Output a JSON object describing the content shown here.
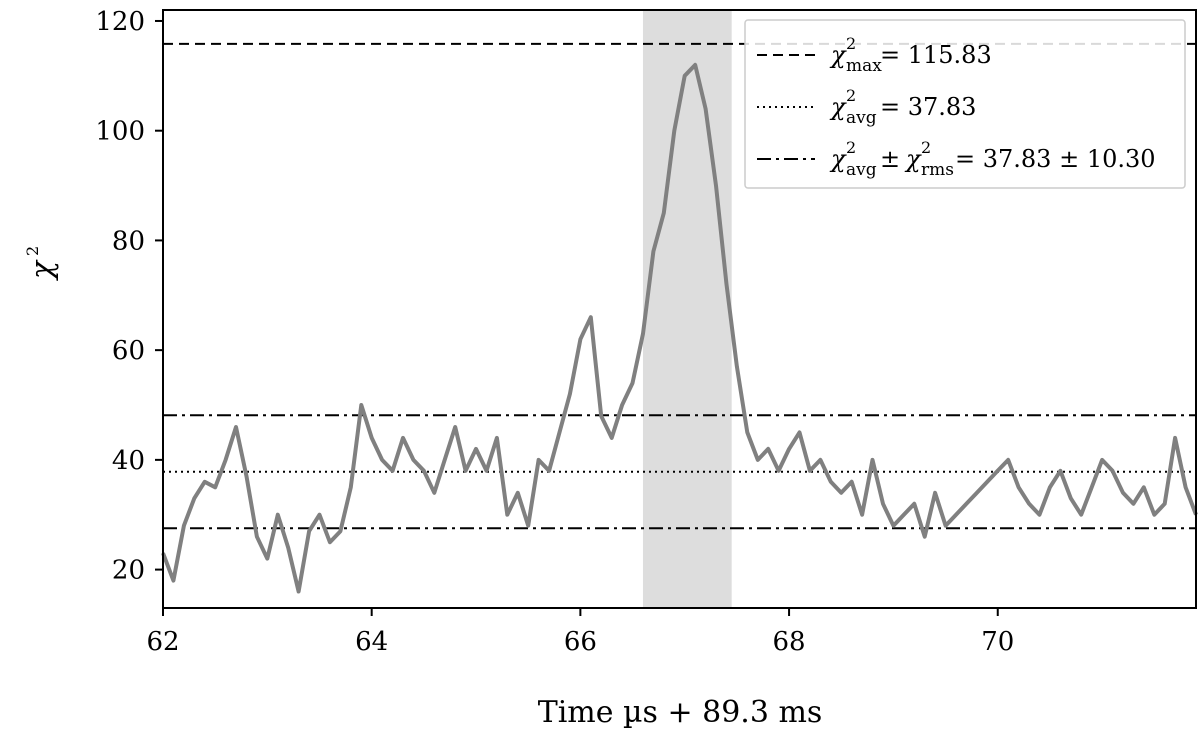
{
  "chart_data": {
    "type": "line",
    "xlabel": "Time µs + 89.3 ms",
    "ylabel_symbol": "χ",
    "ylabel_superscript": "2",
    "xlim": [
      62,
      71.9
    ],
    "ylim": [
      13,
      122
    ],
    "xticks": [
      62,
      64,
      66,
      68,
      70
    ],
    "yticks": [
      20,
      40,
      60,
      80,
      100,
      120
    ],
    "grid": false,
    "legend_position": "top-right",
    "highlight_region": {
      "x0": 66.6,
      "x1": 67.45,
      "color": "#dddddd"
    },
    "series": [
      {
        "color": "#808080",
        "x": [
          62.0,
          62.1,
          62.2,
          62.3,
          62.4,
          62.5,
          62.6,
          62.7,
          62.8,
          62.9,
          63.0,
          63.1,
          63.2,
          63.3,
          63.4,
          63.5,
          63.6,
          63.7,
          63.8,
          63.9,
          64.0,
          64.1,
          64.2,
          64.3,
          64.4,
          64.5,
          64.6,
          64.7,
          64.8,
          64.9,
          65.0,
          65.1,
          65.2,
          65.3,
          65.4,
          65.5,
          65.6,
          65.7,
          65.8,
          65.9,
          66.0,
          66.1,
          66.2,
          66.3,
          66.4,
          66.5,
          66.6,
          66.7,
          66.8,
          66.9,
          67.0,
          67.1,
          67.2,
          67.3,
          67.4,
          67.5,
          67.6,
          67.7,
          67.8,
          67.9,
          68.0,
          68.1,
          68.2,
          68.3,
          68.4,
          68.5,
          68.6,
          68.7,
          68.8,
          68.9,
          69.0,
          69.1,
          69.2,
          69.3,
          69.4,
          69.5,
          69.6,
          69.7,
          69.8,
          69.9,
          70.0,
          70.1,
          70.2,
          70.3,
          70.4,
          70.5,
          70.6,
          70.7,
          70.8,
          70.9,
          71.0,
          71.1,
          71.2,
          71.3,
          71.4,
          71.5,
          71.6,
          71.7,
          71.8,
          71.9
        ],
        "values": [
          23,
          18,
          28,
          33,
          36,
          35,
          40,
          46,
          37,
          26,
          22,
          30,
          24,
          16,
          27,
          30,
          25,
          27,
          35,
          50,
          44,
          40,
          38,
          44,
          40,
          38,
          34,
          40,
          46,
          38,
          42,
          38,
          44,
          30,
          34,
          28,
          40,
          38,
          45,
          52,
          62,
          66,
          48,
          44,
          50,
          54,
          63,
          78,
          85,
          100,
          110,
          112,
          104,
          90,
          72,
          57,
          45,
          40,
          42,
          38,
          42,
          45,
          38,
          40,
          36,
          34,
          36,
          30,
          40,
          32,
          28,
          30,
          32,
          26,
          34,
          28,
          30,
          32,
          34,
          36,
          38,
          40,
          35,
          32,
          30,
          35,
          38,
          33,
          30,
          35,
          40,
          38,
          34,
          32,
          35,
          30,
          32,
          44,
          35,
          30
        ]
      }
    ],
    "reference_lines": [
      {
        "y": 115.83,
        "style": "dashed",
        "label_sym": "χ",
        "label_sup": "2",
        "label_sub": "max",
        "label_rest": " = 115.83"
      },
      {
        "y": 37.83,
        "style": "dotted",
        "label_sym": "χ",
        "label_sup": "2",
        "label_sub": "avg",
        "label_rest": " = 37.83"
      },
      {
        "y": 48.13,
        "style": "dashdot",
        "label_sym": "χ",
        "label_sup": "2",
        "label_sub": "avg",
        "label_mid": " ± ",
        "label_sym2": "χ",
        "label_sup2": "2",
        "label_sub2": "rms",
        "label_rest": " = 37.83 ± 10.30"
      },
      {
        "y": 27.53,
        "style": "dashdot"
      }
    ]
  }
}
